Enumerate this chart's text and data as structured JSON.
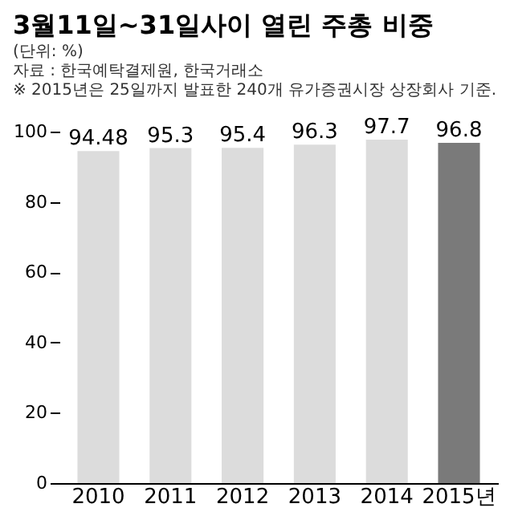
{
  "chart_data": {
    "type": "bar",
    "title": "3월11일~31일사이 열린 주총 비중",
    "annotations": [
      "(단위: %)",
      "자료 : 한국예탁결제원, 한국거래소",
      "※ 2015년은 25일까지 발표한 240개 유가증권시장 상장회사 기준."
    ],
    "categories": [
      "2010",
      "2011",
      "2012",
      "2013",
      "2014",
      "2015년"
    ],
    "values": [
      94.48,
      95.3,
      95.4,
      96.3,
      97.7,
      96.8
    ],
    "colors": [
      "#dcdcdc",
      "#dcdcdc",
      "#dcdcdc",
      "#dcdcdc",
      "#dcdcdc",
      "#7a7a7a"
    ],
    "ylim": [
      0,
      100
    ],
    "yticks": [
      0,
      20,
      40,
      60,
      80,
      100
    ],
    "data_labels": true,
    "grid": false
  }
}
